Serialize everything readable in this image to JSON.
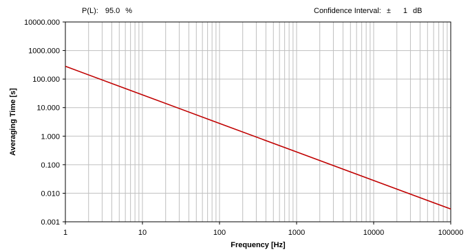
{
  "header": {
    "pl_label": "P(L):",
    "pl_value": "95.0",
    "pl_unit": "%",
    "ci_label": "Confidence Interval:",
    "ci_symbol": "±",
    "ci_value": "1",
    "ci_unit": "dB"
  },
  "chart_data": {
    "type": "line",
    "title": "",
    "xlabel": "Frequency [Hz]",
    "ylabel": "Averaging Time [s]",
    "x_scale": "log",
    "y_scale": "log",
    "xlim": [
      1,
      100000
    ],
    "ylim": [
      0.001,
      10000
    ],
    "grid": true,
    "legend": "none",
    "x_tick_labels": [
      "1",
      "10",
      "100",
      "1000",
      "10000",
      "100000"
    ],
    "y_tick_labels": [
      "0.001",
      "0.010",
      "0.100",
      "1.000",
      "10.000",
      "100.000",
      "1000.000",
      "10000.000"
    ],
    "series": [
      {
        "x": [
          1,
          10,
          100,
          1000,
          10000,
          100000
        ],
        "values": [
          280,
          28,
          2.8,
          0.28,
          0.028,
          0.0028
        ],
        "color": "#c00000"
      }
    ]
  }
}
